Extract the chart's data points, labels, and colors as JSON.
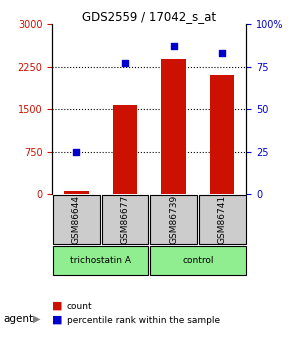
{
  "title": "GDS2559 / 17042_s_at",
  "samples": [
    "GSM86644",
    "GSM86677",
    "GSM86739",
    "GSM86741"
  ],
  "counts": [
    50,
    1580,
    2380,
    2100
  ],
  "percentile_ranks": [
    25,
    77,
    87,
    83
  ],
  "groups": [
    "trichostatin A",
    "trichostatin A",
    "control",
    "control"
  ],
  "group_colors": {
    "trichostatin A": "#90EE90",
    "control": "#90EE90"
  },
  "bar_color": "#CC1100",
  "dot_color": "#0000CC",
  "ylim_left": [
    0,
    3000
  ],
  "ylim_right": [
    0,
    100
  ],
  "yticks_left": [
    0,
    750,
    1500,
    2250,
    3000
  ],
  "ytick_labels_left": [
    "0",
    "750",
    "1500",
    "2250",
    "3000"
  ],
  "yticks_right": [
    0,
    25,
    50,
    75,
    100
  ],
  "ytick_labels_right": [
    "0",
    "25",
    "50",
    "75",
    "100%"
  ],
  "ylabel_left_color": "#CC1100",
  "ylabel_right_color": "#0000CC",
  "agent_label": "agent",
  "group_label_trichostatin": "trichostatin A",
  "group_label_control": "control",
  "legend_count_label": "count",
  "legend_pct_label": "percentile rank within the sample"
}
